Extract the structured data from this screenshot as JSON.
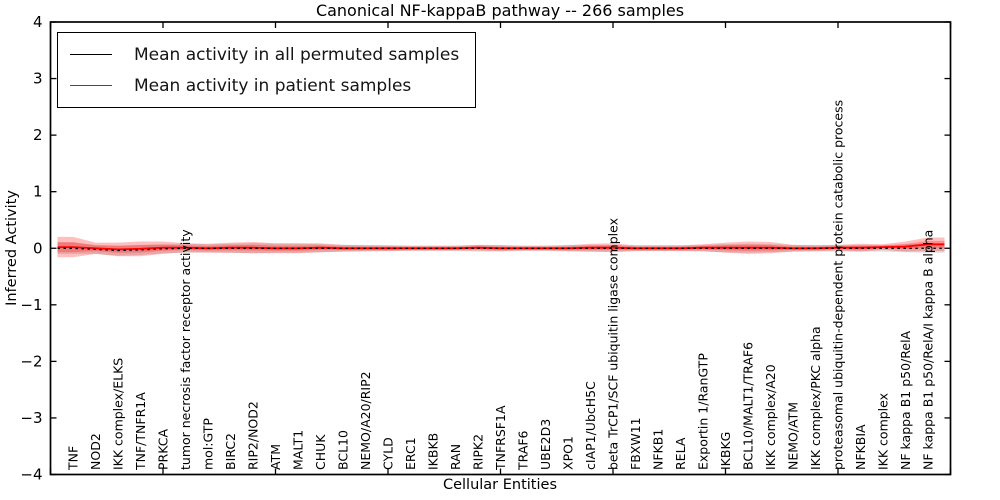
{
  "figure": {
    "title": "Canonical NF-kappaB pathway -- 266 samples",
    "xlabel": "Cellular Entities",
    "ylabel": "Inferred Activity"
  },
  "legend": {
    "items": [
      {
        "label": "Mean activity in all permuted samples",
        "color": "#000000"
      },
      {
        "label": "Mean activity in patient samples",
        "color": "#ff0000"
      }
    ]
  },
  "chart_data": {
    "type": "line",
    "title": "Canonical NF-kappaB pathway -- 266 samples",
    "xlabel": "Cellular Entities",
    "ylabel": "Inferred Activity",
    "ylim": [
      -4,
      4
    ],
    "xlim": [
      0,
      40
    ],
    "yticks": [
      4,
      3,
      2,
      1,
      0,
      -1,
      -2,
      -3,
      -4
    ],
    "ytick_labels": [
      "4",
      "3",
      "2",
      "1",
      "0",
      "−1",
      "−2",
      "−3",
      "−4"
    ],
    "xtick_step": 5,
    "grid": false,
    "legend_position": "upper left",
    "categories": [
      "TNF",
      "NOD2",
      "IKK complex/ELKS",
      "TNF/TNFR1A",
      "PRKCA",
      "tumor necrosis factor receptor activity",
      "mol:GTP",
      "BIRC2",
      "RIP2/NOD2",
      "ATM",
      "MALT1",
      "CHUK",
      "BCL10",
      "NEMO/A20/RIP2",
      "CYLD",
      "ERC1",
      "IKBKB",
      "RAN",
      "RIPK2",
      "TNFRSF1A",
      "TRAF6",
      "UBE2D3",
      "XPO1",
      "cIAP1/UbcH5C",
      "beta TrCP1/SCF ubiquitin ligase complex",
      "FBXW11",
      "NFKB1",
      "RELA",
      "Exportin 1/RanGTP",
      "IKBKG",
      "BCL10/MALT1/TRAF6",
      "IKK complex/A20",
      "NEMO/ATM",
      "IKK complex/PKC alpha",
      "proteasomal ubiquitin-dependent protein catabolic process",
      "NFKBIA",
      "IKK complex",
      "NF kappa B1 p50/RelA",
      "NF kappa B1 p50/RelA/I kappa B alpha"
    ],
    "series": [
      {
        "name": "Mean activity in all permuted samples",
        "color": "#000000",
        "style": "dashed",
        "values": [
          0.0,
          -0.02,
          -0.04,
          -0.03,
          -0.01,
          0.0,
          0.0,
          0.0,
          0.0,
          0.0,
          0.0,
          0.0,
          0.0,
          0.0,
          0.0,
          0.0,
          0.0,
          0.0,
          0.0,
          0.0,
          0.0,
          0.0,
          0.0,
          0.0,
          0.0,
          0.0,
          0.0,
          0.0,
          0.0,
          0.0,
          0.0,
          0.0,
          0.0,
          0.0,
          0.0,
          0.0,
          0.0,
          0.0,
          0.0
        ]
      },
      {
        "name": "Mean activity in patient samples",
        "color": "#ff0000",
        "style": "solid",
        "values": [
          0.02,
          0.0,
          -0.02,
          -0.01,
          0.01,
          0.01,
          0.0,
          0.01,
          0.01,
          0.0,
          0.0,
          0.01,
          0.0,
          0.0,
          0.0,
          0.0,
          0.0,
          0.0,
          0.01,
          0.0,
          0.0,
          0.0,
          0.0,
          0.01,
          0.01,
          0.0,
          0.0,
          0.0,
          0.01,
          0.01,
          0.01,
          0.01,
          0.0,
          0.0,
          0.01,
          0.01,
          0.02,
          0.03,
          0.07
        ]
      }
    ],
    "bands": [
      {
        "name": "permuted-samples-spread",
        "color": "#999999",
        "opacity": 0.32,
        "center_series": 0,
        "halfwidths": [
          0.1,
          0.08,
          0.09,
          0.09,
          0.08,
          0.08,
          0.07,
          0.08,
          0.09,
          0.08,
          0.08,
          0.07,
          0.06,
          0.06,
          0.05,
          0.05,
          0.05,
          0.05,
          0.06,
          0.06,
          0.05,
          0.05,
          0.06,
          0.06,
          0.06,
          0.05,
          0.05,
          0.05,
          0.06,
          0.07,
          0.08,
          0.07,
          0.06,
          0.06,
          0.06,
          0.06,
          0.06,
          0.07,
          0.08
        ]
      },
      {
        "name": "patient-samples-spread",
        "color": "#ff0000",
        "opacity": 0.25,
        "center_series": 1,
        "halfwidths": [
          0.18,
          0.1,
          0.12,
          0.13,
          0.11,
          0.08,
          0.08,
          0.09,
          0.1,
          0.09,
          0.09,
          0.08,
          0.06,
          0.05,
          0.05,
          0.04,
          0.04,
          0.04,
          0.05,
          0.05,
          0.04,
          0.04,
          0.05,
          0.07,
          0.08,
          0.05,
          0.05,
          0.05,
          0.06,
          0.09,
          0.11,
          0.1,
          0.06,
          0.05,
          0.05,
          0.07,
          0.05,
          0.09,
          0.12
        ]
      }
    ]
  }
}
